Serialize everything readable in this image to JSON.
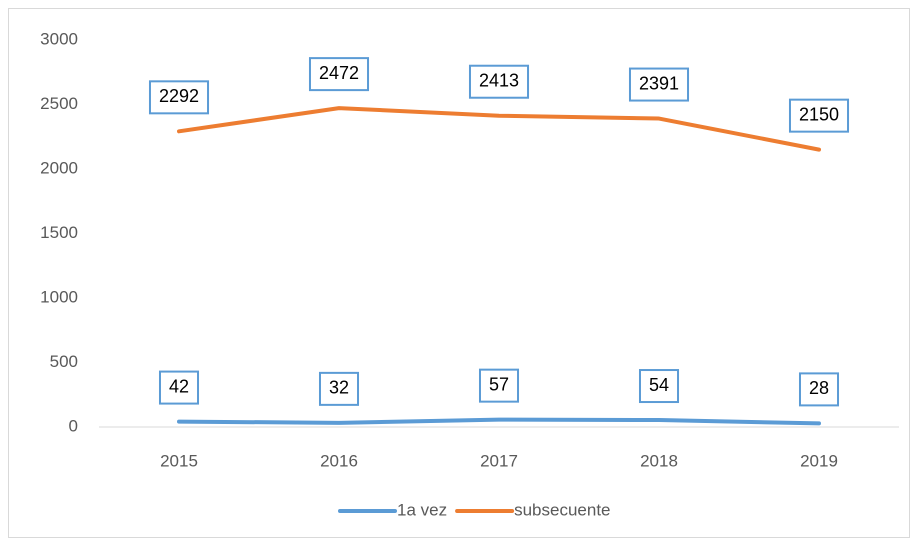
{
  "chart_data": {
    "type": "line",
    "categories": [
      "2015",
      "2016",
      "2017",
      "2018",
      "2019"
    ],
    "series": [
      {
        "name": "1a vez",
        "color": "#5b9bd5",
        "values": [
          42,
          32,
          57,
          54,
          28
        ]
      },
      {
        "name": "subsecuente",
        "color": "#ed7d31",
        "values": [
          2292,
          2472,
          2413,
          2391,
          2150
        ]
      }
    ],
    "ylim": [
      0,
      3000
    ],
    "yticks": [
      0,
      500,
      1000,
      1500,
      2000,
      2500,
      3000
    ],
    "grid": false,
    "legend": "bottom"
  }
}
